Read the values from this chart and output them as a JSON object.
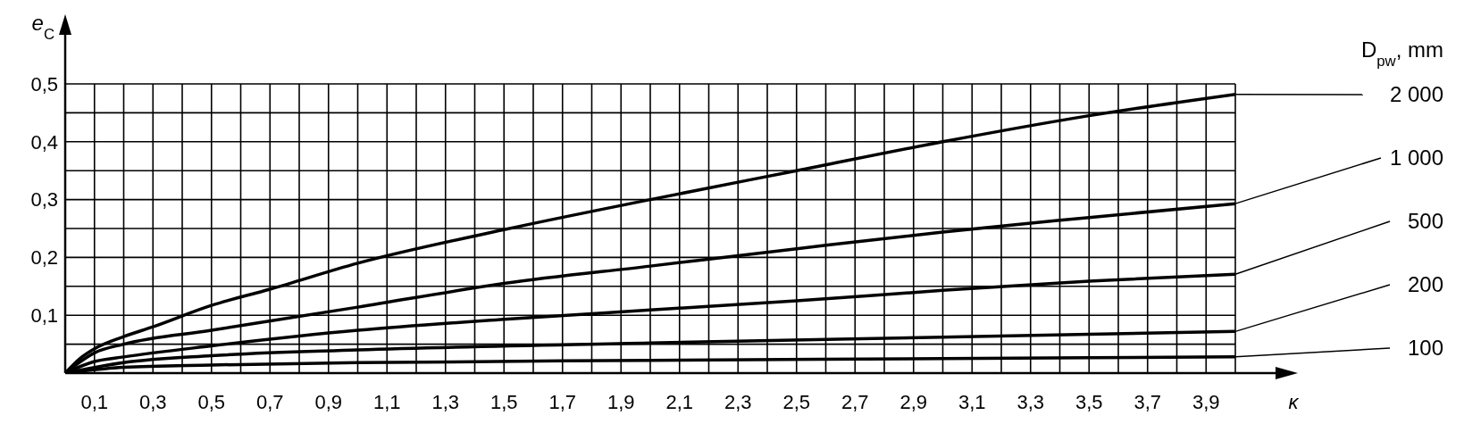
{
  "chart_data": {
    "type": "line",
    "ylabel": "e$_{C}$",
    "xlabel": "κ",
    "legend_title": "D$_{pw}$, mm",
    "xlim": [
      0,
      4.0
    ],
    "ylim": [
      0,
      0.5
    ],
    "xticks": [
      {
        "value": 0,
        "label": null
      },
      {
        "value": 0.1,
        "label": "0,1"
      },
      {
        "value": 0.2,
        "label": null
      },
      {
        "value": 0.3,
        "label": "0,3"
      },
      {
        "value": 0.4,
        "label": null
      },
      {
        "value": 0.5,
        "label": "0,5"
      },
      {
        "value": 0.6,
        "label": null
      },
      {
        "value": 0.7,
        "label": "0,7"
      },
      {
        "value": 0.8,
        "label": null
      },
      {
        "value": 0.9,
        "label": "0,9"
      },
      {
        "value": 1.0,
        "label": null
      },
      {
        "value": 1.1,
        "label": "1,1"
      },
      {
        "value": 1.2,
        "label": null
      },
      {
        "value": 1.3,
        "label": "1,3"
      },
      {
        "value": 1.4,
        "label": null
      },
      {
        "value": 1.5,
        "label": "1,5"
      },
      {
        "value": 1.6,
        "label": null
      },
      {
        "value": 1.7,
        "label": "1,7"
      },
      {
        "value": 1.8,
        "label": null
      },
      {
        "value": 1.9,
        "label": "1,9"
      },
      {
        "value": 2.0,
        "label": null
      },
      {
        "value": 2.1,
        "label": "2,1"
      },
      {
        "value": 2.2,
        "label": null
      },
      {
        "value": 2.3,
        "label": "2,3"
      },
      {
        "value": 2.4,
        "label": null
      },
      {
        "value": 2.5,
        "label": "2,5"
      },
      {
        "value": 2.6,
        "label": null
      },
      {
        "value": 2.7,
        "label": "2,7"
      },
      {
        "value": 2.8,
        "label": null
      },
      {
        "value": 2.9,
        "label": "2,9"
      },
      {
        "value": 3.0,
        "label": null
      },
      {
        "value": 3.1,
        "label": "3,1"
      },
      {
        "value": 3.2,
        "label": null
      },
      {
        "value": 3.3,
        "label": "3,3"
      },
      {
        "value": 3.4,
        "label": null
      },
      {
        "value": 3.5,
        "label": "3,5"
      },
      {
        "value": 3.6,
        "label": null
      },
      {
        "value": 3.7,
        "label": "3,7"
      },
      {
        "value": 3.8,
        "label": null
      },
      {
        "value": 3.9,
        "label": "3,9"
      },
      {
        "value": 4.0,
        "label": null
      }
    ],
    "yticks": [
      {
        "value": 0,
        "label": null
      },
      {
        "value": 0.05,
        "label": null
      },
      {
        "value": 0.1,
        "label": "0,1"
      },
      {
        "value": 0.15,
        "label": null
      },
      {
        "value": 0.2,
        "label": "0,2"
      },
      {
        "value": 0.25,
        "label": null
      },
      {
        "value": 0.3,
        "label": "0,3"
      },
      {
        "value": 0.35,
        "label": null
      },
      {
        "value": 0.4,
        "label": "0,4"
      },
      {
        "value": 0.45,
        "label": null
      },
      {
        "value": 0.5,
        "label": "0,5"
      }
    ],
    "grid": true,
    "series": [
      {
        "name": "2 000",
        "color": "#000000",
        "x": [
          0,
          0.05,
          0.1,
          0.2,
          0.3,
          0.5,
          0.7,
          1.0,
          1.5,
          2.0,
          2.5,
          3.0,
          3.5,
          4.0
        ],
        "values": [
          0,
          0.025,
          0.042,
          0.063,
          0.08,
          0.117,
          0.145,
          0.19,
          0.248,
          0.3,
          0.35,
          0.4,
          0.445,
          0.482
        ]
      },
      {
        "name": "1 000",
        "color": "#000000",
        "x": [
          0,
          0.1,
          0.2,
          0.5,
          1.0,
          1.5,
          2.0,
          2.5,
          3.0,
          3.5,
          4.0
        ],
        "values": [
          0,
          0.035,
          0.05,
          0.074,
          0.114,
          0.155,
          0.185,
          0.215,
          0.244,
          0.269,
          0.293
        ]
      },
      {
        "name": "500",
        "color": "#000000",
        "x": [
          0,
          0.1,
          0.2,
          0.5,
          1.0,
          1.5,
          2.0,
          2.5,
          3.0,
          3.5,
          4.0
        ],
        "values": [
          0,
          0.02,
          0.028,
          0.047,
          0.074,
          0.093,
          0.109,
          0.125,
          0.143,
          0.159,
          0.171
        ]
      },
      {
        "name": "200",
        "color": "#000000",
        "x": [
          0,
          0.2,
          0.5,
          1.0,
          2.0,
          3.0,
          4.0
        ],
        "values": [
          0,
          0.018,
          0.03,
          0.04,
          0.052,
          0.062,
          0.072
        ]
      },
      {
        "name": "100",
        "color": "#000000",
        "x": [
          0,
          0.2,
          0.5,
          1.0,
          2.0,
          3.0,
          4.0
        ],
        "values": [
          0,
          0.01,
          0.014,
          0.018,
          0.022,
          0.025,
          0.028
        ]
      }
    ]
  }
}
